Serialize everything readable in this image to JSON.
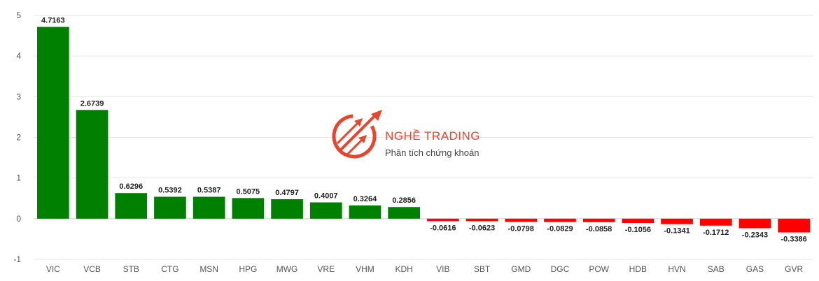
{
  "chart_data": {
    "type": "bar",
    "title": "",
    "xlabel": "",
    "ylabel": "",
    "ylim": [
      -1,
      5
    ],
    "yticks": [
      -1,
      0,
      1,
      2,
      3,
      4,
      5
    ],
    "grid": true,
    "positive_color": "#008000",
    "negative_color": "#ff0000",
    "categories": [
      "VIC",
      "VCB",
      "STB",
      "CTG",
      "MSN",
      "HPG",
      "MWG",
      "VRE",
      "VHM",
      "KDH",
      "VIB",
      "SBT",
      "GMD",
      "DGC",
      "POW",
      "HDB",
      "HVN",
      "SAB",
      "GAS",
      "GVR"
    ],
    "values": [
      4.7163,
      2.6739,
      0.6296,
      0.5392,
      0.5387,
      0.5075,
      0.4797,
      0.4007,
      0.3264,
      0.2856,
      -0.0616,
      -0.0623,
      -0.0798,
      -0.0829,
      -0.0858,
      -0.1056,
      -0.1341,
      -0.1712,
      -0.2343,
      -0.3386
    ],
    "labels": [
      "4.7163",
      "2.6739",
      "0.6296",
      "0.5392",
      "0.5387",
      "0.5075",
      "0.4797",
      "0.4007",
      "0.3264",
      "0.2856",
      "-0.0616",
      "-0.0623",
      "-0.0798",
      "-0.0829",
      "-0.0858",
      "-0.1056",
      "-0.1341",
      "-0.1712",
      "-0.2343",
      "-0.3386"
    ]
  },
  "watermark": {
    "brand": "NGHỀ TRADING",
    "tagline": "Phân tích chứng khoán",
    "logo_icon": "trading-arrows-logo-icon",
    "color": "#e8462c"
  }
}
